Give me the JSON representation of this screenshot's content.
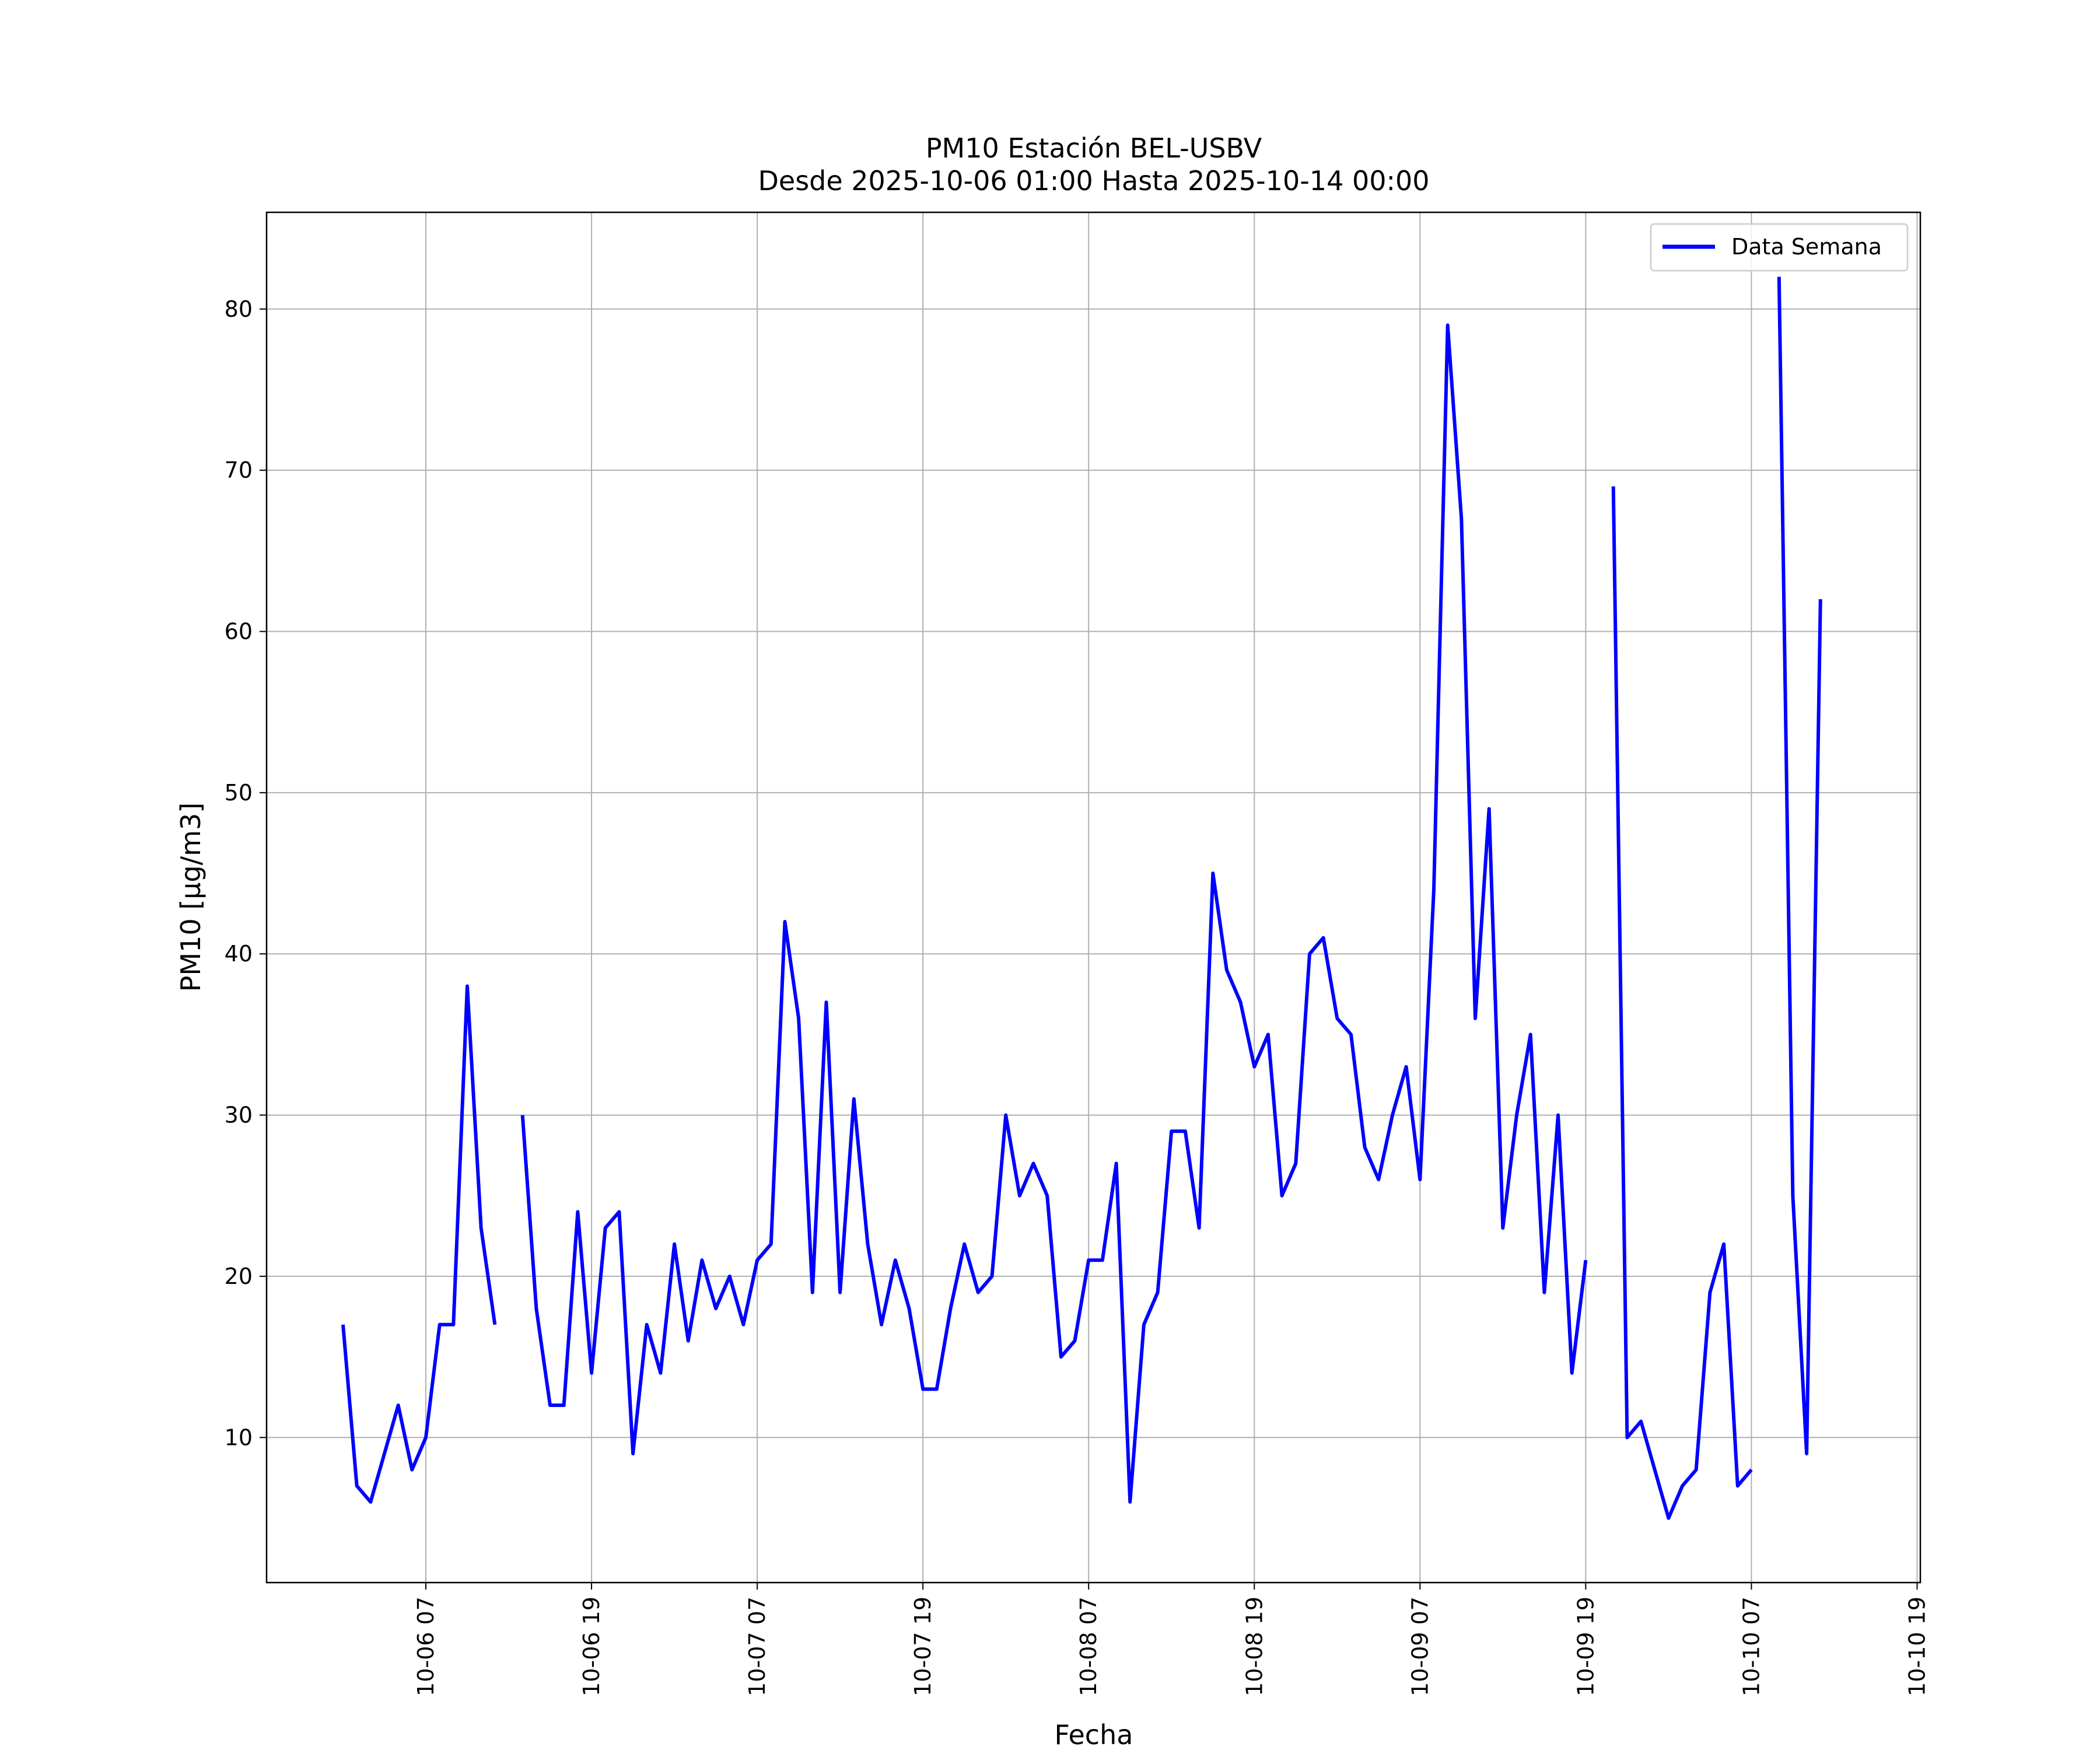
{
  "chart_data": {
    "type": "line",
    "title": "PM10 Estación BEL-USBV",
    "subtitle": "Desde 2025-10-06 01:00 Hasta 2025-10-14 00:00",
    "xlabel": "Fecha",
    "ylabel": "PM10 [μg/m3]",
    "ylim": [
      1.0,
      86.0
    ],
    "xlim": [
      "2025-10-05 19:28",
      "2025-10-10 19:14"
    ],
    "grid": true,
    "legend_position": "top-right",
    "x_ticks": [
      {
        "value": "2025-10-06 07:00",
        "label": "10-06 07"
      },
      {
        "value": "2025-10-06 19:00",
        "label": "10-06 19"
      },
      {
        "value": "2025-10-07 07:00",
        "label": "10-07 07"
      },
      {
        "value": "2025-10-07 19:00",
        "label": "10-07 19"
      },
      {
        "value": "2025-10-08 07:00",
        "label": "10-08 07"
      },
      {
        "value": "2025-10-08 19:00",
        "label": "10-08 19"
      },
      {
        "value": "2025-10-09 07:00",
        "label": "10-09 07"
      },
      {
        "value": "2025-10-09 19:00",
        "label": "10-09 19"
      },
      {
        "value": "2025-10-10 07:00",
        "label": "10-10 07"
      },
      {
        "value": "2025-10-10 19:00",
        "label": "10-10 19"
      }
    ],
    "y_ticks": [
      10,
      20,
      30,
      40,
      50,
      60,
      70,
      80
    ],
    "series": [
      {
        "name": "Data Semana",
        "color": "#0000ff",
        "x": [
          "2025-10-06 01:00",
          "2025-10-06 02:00",
          "2025-10-06 03:00",
          "2025-10-06 04:00",
          "2025-10-06 05:00",
          "2025-10-06 06:00",
          "2025-10-06 07:00",
          "2025-10-06 08:00",
          "2025-10-06 09:00",
          "2025-10-06 10:00",
          "2025-10-06 11:00",
          "2025-10-06 12:00",
          "2025-10-06 13:00",
          "2025-10-06 14:00",
          "2025-10-06 15:00",
          "2025-10-06 16:00",
          "2025-10-06 17:00",
          "2025-10-06 18:00",
          "2025-10-06 19:00",
          "2025-10-06 20:00",
          "2025-10-06 21:00",
          "2025-10-06 22:00",
          "2025-10-06 23:00",
          "2025-10-07 00:00",
          "2025-10-07 01:00",
          "2025-10-07 02:00",
          "2025-10-07 03:00",
          "2025-10-07 04:00",
          "2025-10-07 05:00",
          "2025-10-07 06:00",
          "2025-10-07 07:00",
          "2025-10-07 08:00",
          "2025-10-07 09:00",
          "2025-10-07 10:00",
          "2025-10-07 11:00",
          "2025-10-07 12:00",
          "2025-10-07 13:00",
          "2025-10-07 14:00",
          "2025-10-07 15:00",
          "2025-10-07 16:00",
          "2025-10-07 17:00",
          "2025-10-07 18:00",
          "2025-10-07 19:00",
          "2025-10-07 20:00",
          "2025-10-07 21:00",
          "2025-10-07 22:00",
          "2025-10-07 23:00",
          "2025-10-08 00:00",
          "2025-10-08 01:00",
          "2025-10-08 02:00",
          "2025-10-08 03:00",
          "2025-10-08 04:00",
          "2025-10-08 05:00",
          "2025-10-08 06:00",
          "2025-10-08 07:00",
          "2025-10-08 08:00",
          "2025-10-08 09:00",
          "2025-10-08 10:00",
          "2025-10-08 11:00",
          "2025-10-08 12:00",
          "2025-10-08 13:00",
          "2025-10-08 14:00",
          "2025-10-08 15:00",
          "2025-10-08 16:00",
          "2025-10-08 17:00",
          "2025-10-08 18:00",
          "2025-10-08 19:00",
          "2025-10-08 20:00",
          "2025-10-08 21:00",
          "2025-10-08 22:00",
          "2025-10-08 23:00",
          "2025-10-09 00:00",
          "2025-10-09 01:00",
          "2025-10-09 02:00",
          "2025-10-09 03:00",
          "2025-10-09 04:00",
          "2025-10-09 05:00",
          "2025-10-09 06:00",
          "2025-10-09 07:00",
          "2025-10-09 08:00",
          "2025-10-09 09:00",
          "2025-10-09 10:00",
          "2025-10-09 11:00",
          "2025-10-09 12:00",
          "2025-10-09 13:00",
          "2025-10-09 14:00",
          "2025-10-09 15:00",
          "2025-10-09 16:00",
          "2025-10-09 17:00",
          "2025-10-09 18:00",
          "2025-10-09 19:00",
          "2025-10-09 20:00",
          "2025-10-09 21:00",
          "2025-10-09 22:00",
          "2025-10-09 23:00",
          "2025-10-10 00:00",
          "2025-10-10 01:00",
          "2025-10-10 02:00",
          "2025-10-10 03:00",
          "2025-10-10 04:00",
          "2025-10-10 05:00",
          "2025-10-10 06:00",
          "2025-10-10 07:00",
          "2025-10-10 08:00",
          "2025-10-10 09:00",
          "2025-10-10 10:00",
          "2025-10-10 11:00",
          "2025-10-10 12:00"
        ],
        "y": [
          17,
          7,
          6,
          9,
          12,
          8,
          10,
          17,
          17,
          38,
          23,
          17,
          null,
          30,
          18,
          12,
          12,
          24,
          14,
          23,
          24,
          9,
          17,
          14,
          22,
          16,
          21,
          18,
          20,
          17,
          21,
          22,
          42,
          36,
          19,
          37,
          19,
          31,
          22,
          17,
          21,
          18,
          13,
          13,
          18,
          22,
          19,
          20,
          30,
          25,
          27,
          25,
          15,
          16,
          21,
          21,
          27,
          6,
          17,
          19,
          29,
          29,
          23,
          45,
          39,
          37,
          33,
          35,
          25,
          27,
          40,
          41,
          36,
          35,
          28,
          26,
          30,
          33,
          26,
          44,
          79,
          67,
          36,
          49,
          23,
          30,
          35,
          19,
          30,
          14,
          21,
          null,
          69,
          10,
          11,
          8,
          5,
          7,
          8,
          19,
          22,
          7,
          8,
          null,
          82,
          25,
          9,
          62
        ]
      }
    ]
  }
}
